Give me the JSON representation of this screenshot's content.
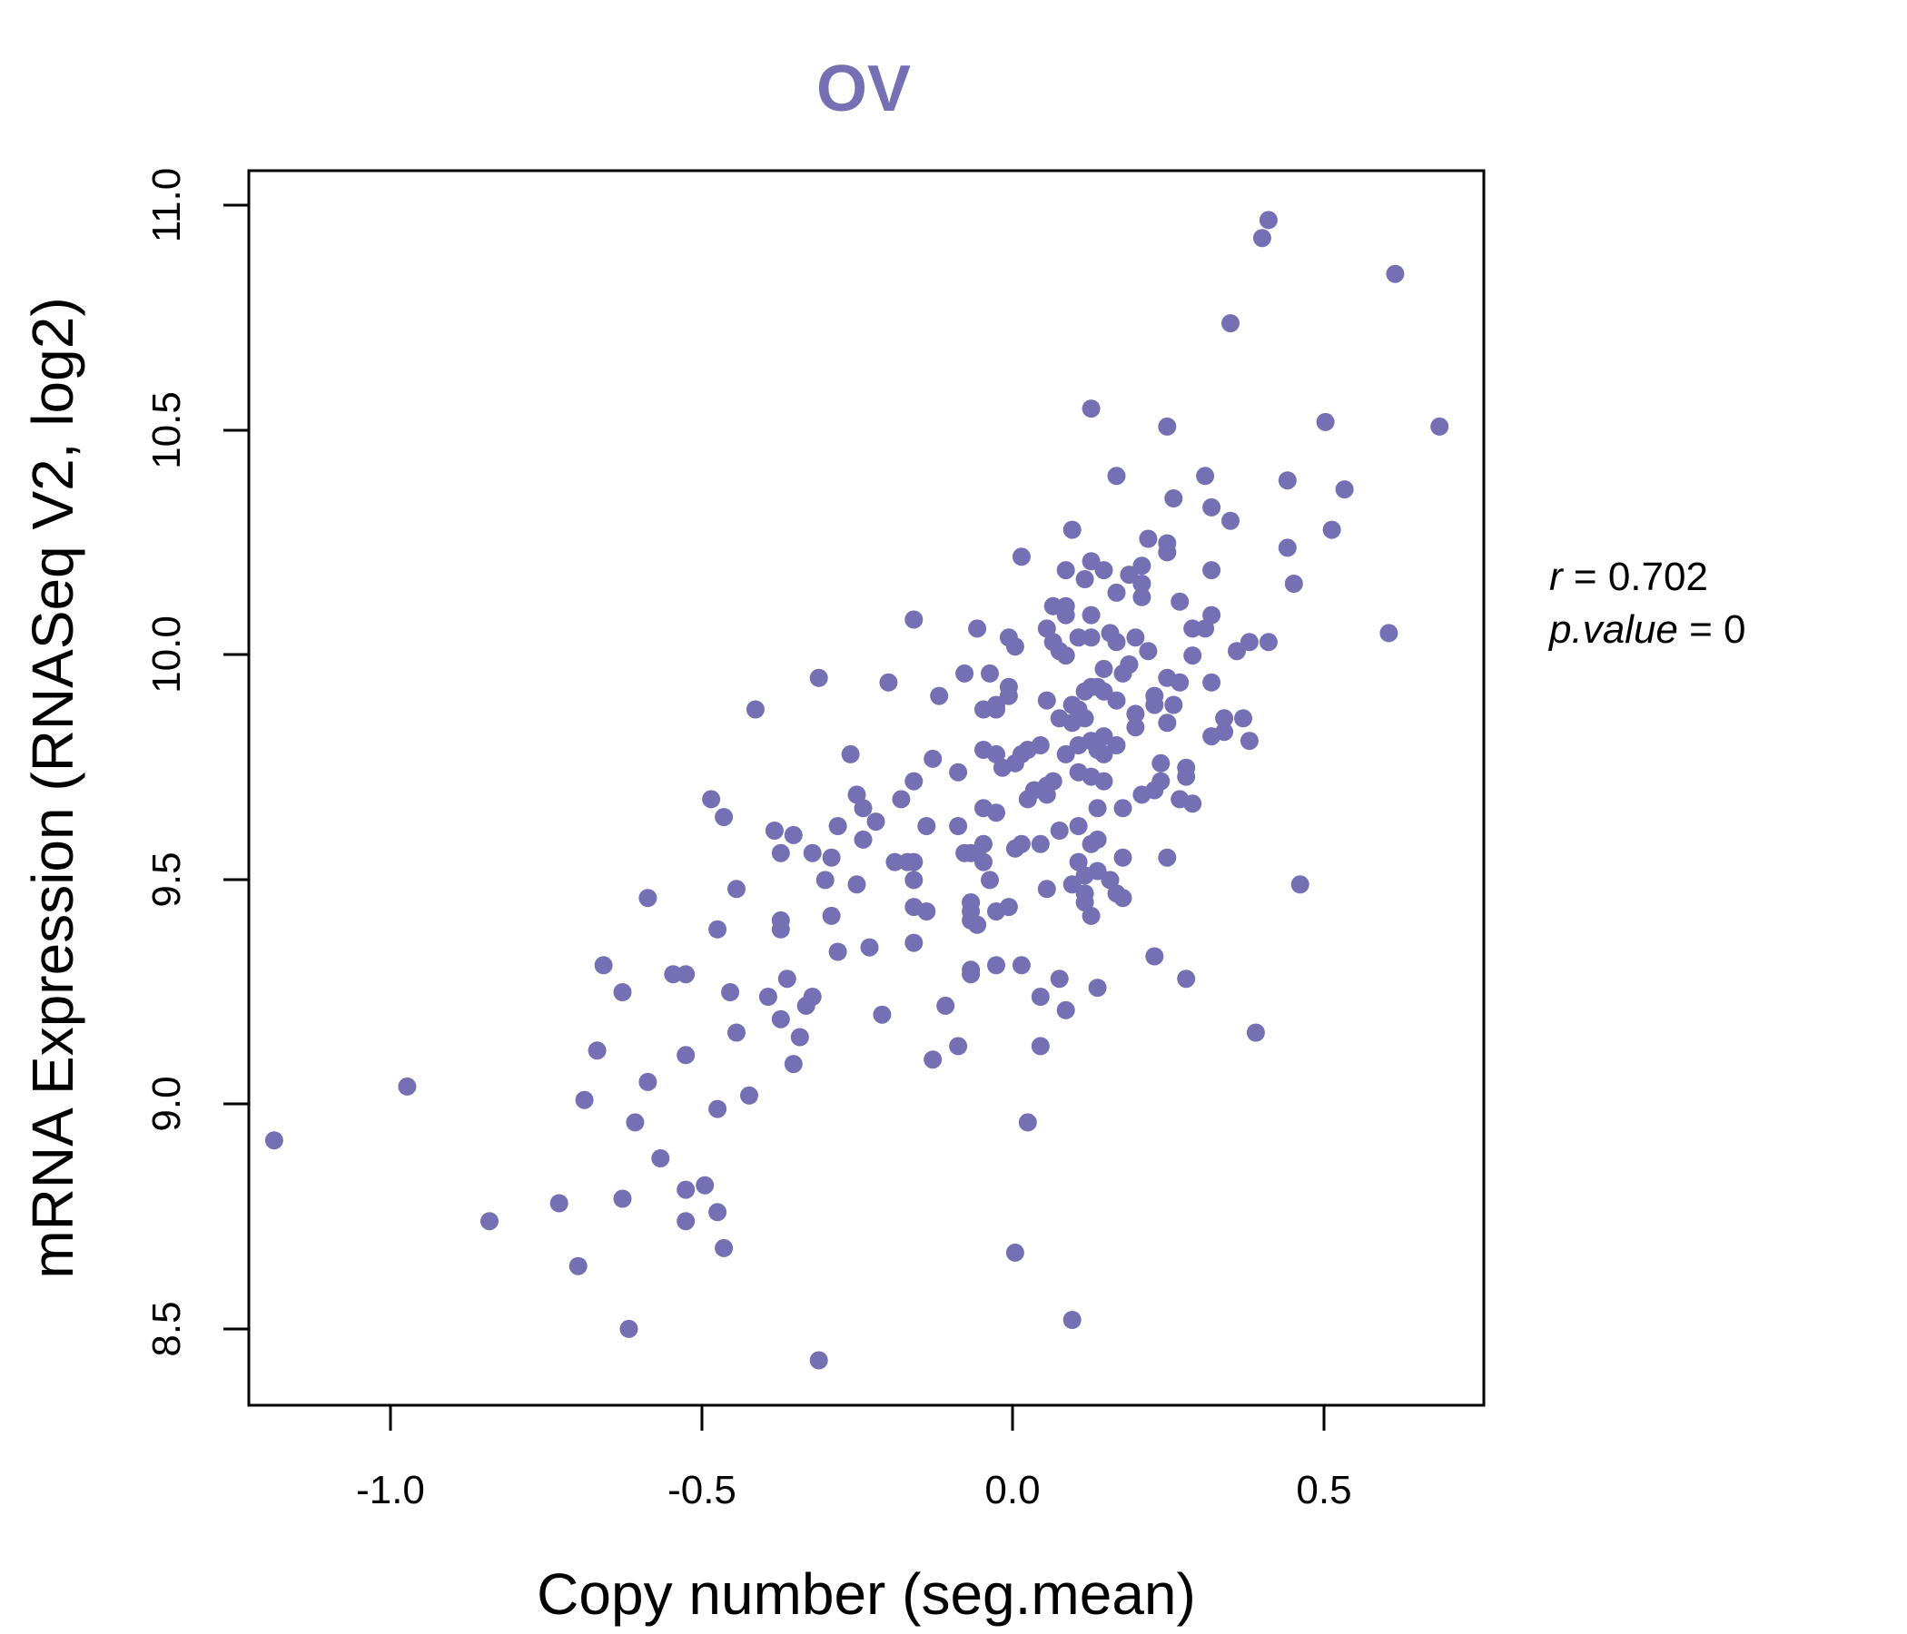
{
  "chart_data": {
    "type": "scatter",
    "title": "OV",
    "title_color": "#7570b3",
    "point_color": "#7570b3",
    "xlabel": "Copy number (seg.mean)",
    "ylabel": "mRNA Expression (RNASeq V2, log2)",
    "xlim": [
      -1.2,
      0.75
    ],
    "ylim": [
      8.33,
      11.08
    ],
    "xticks": [
      "-1.0",
      "-0.5",
      "0.0",
      "0.5"
    ],
    "yticks": [
      "8.5",
      "9.0",
      "9.5",
      "10.0",
      "10.5",
      "11.0"
    ],
    "stats": {
      "r_label": "r",
      "r_value": "0.702",
      "p_label": "p.value",
      "p_value": "0"
    },
    "points": [
      [
        -1.16,
        8.92
      ],
      [
        -0.95,
        9.04
      ],
      [
        -0.82,
        8.74
      ],
      [
        -0.71,
        8.78
      ],
      [
        -0.68,
        8.64
      ],
      [
        -0.67,
        9.01
      ],
      [
        -0.65,
        9.12
      ],
      [
        -0.64,
        9.31
      ],
      [
        -0.61,
        9.25
      ],
      [
        -0.61,
        8.79
      ],
      [
        -0.6,
        8.5
      ],
      [
        -0.59,
        8.96
      ],
      [
        -0.57,
        9.46
      ],
      [
        -0.57,
        9.05
      ],
      [
        -0.55,
        8.88
      ],
      [
        -0.53,
        9.29
      ],
      [
        -0.51,
        9.29
      ],
      [
        -0.51,
        9.11
      ],
      [
        -0.51,
        8.81
      ],
      [
        -0.51,
        8.74
      ],
      [
        -0.48,
        8.82
      ],
      [
        -0.47,
        9.68
      ],
      [
        -0.46,
        9.39
      ],
      [
        -0.46,
        8.76
      ],
      [
        -0.46,
        8.99
      ],
      [
        -0.45,
        9.64
      ],
      [
        -0.45,
        8.68
      ],
      [
        -0.44,
        9.25
      ],
      [
        -0.43,
        9.48
      ],
      [
        -0.43,
        9.16
      ],
      [
        -0.41,
        9.02
      ],
      [
        -0.4,
        9.88
      ],
      [
        -0.38,
        9.24
      ],
      [
        -0.37,
        9.61
      ],
      [
        -0.36,
        9.56
      ],
      [
        -0.36,
        9.41
      ],
      [
        -0.36,
        9.39
      ],
      [
        -0.36,
        9.19
      ],
      [
        -0.35,
        9.28
      ],
      [
        -0.34,
        9.6
      ],
      [
        -0.34,
        9.09
      ],
      [
        -0.33,
        9.15
      ],
      [
        -0.32,
        9.22
      ],
      [
        -0.31,
        9.56
      ],
      [
        -0.31,
        9.24
      ],
      [
        -0.3,
        9.95
      ],
      [
        -0.3,
        8.43
      ],
      [
        -0.29,
        9.5
      ],
      [
        -0.28,
        9.55
      ],
      [
        -0.28,
        9.42
      ],
      [
        -0.27,
        9.62
      ],
      [
        -0.27,
        9.34
      ],
      [
        -0.25,
        9.78
      ],
      [
        -0.24,
        9.69
      ],
      [
        -0.24,
        9.49
      ],
      [
        -0.23,
        9.66
      ],
      [
        -0.23,
        9.59
      ],
      [
        -0.22,
        9.35
      ],
      [
        -0.21,
        9.63
      ],
      [
        -0.2,
        9.2
      ],
      [
        -0.19,
        9.94
      ],
      [
        -0.18,
        9.54
      ],
      [
        -0.17,
        9.68
      ],
      [
        -0.16,
        9.54
      ],
      [
        -0.15,
        10.08
      ],
      [
        -0.15,
        9.72
      ],
      [
        -0.15,
        9.54
      ],
      [
        -0.15,
        9.5
      ],
      [
        -0.15,
        9.44
      ],
      [
        -0.15,
        9.36
      ],
      [
        -0.13,
        9.43
      ],
      [
        -0.13,
        9.62
      ],
      [
        -0.12,
        9.1
      ],
      [
        -0.12,
        9.77
      ],
      [
        -0.11,
        9.91
      ],
      [
        -0.1,
        9.22
      ],
      [
        -0.08,
        9.74
      ],
      [
        -0.08,
        9.62
      ],
      [
        -0.08,
        9.13
      ],
      [
        -0.07,
        9.96
      ],
      [
        -0.07,
        9.56
      ],
      [
        -0.06,
        9.45
      ],
      [
        -0.06,
        9.56
      ],
      [
        -0.06,
        9.45
      ],
      [
        -0.06,
        9.43
      ],
      [
        -0.06,
        9.3
      ],
      [
        -0.06,
        9.29
      ],
      [
        -0.06,
        9.41
      ],
      [
        -0.05,
        10.06
      ],
      [
        -0.05,
        9.56
      ],
      [
        -0.05,
        9.4
      ],
      [
        -0.04,
        9.88
      ],
      [
        -0.04,
        9.66
      ],
      [
        -0.04,
        9.79
      ],
      [
        -0.04,
        9.54
      ],
      [
        -0.04,
        9.58
      ],
      [
        -0.03,
        9.96
      ],
      [
        -0.03,
        9.5
      ],
      [
        -0.02,
        9.89
      ],
      [
        -0.02,
        9.88
      ],
      [
        -0.02,
        9.31
      ],
      [
        -0.02,
        9.78
      ],
      [
        -0.02,
        9.65
      ],
      [
        -0.02,
        9.43
      ],
      [
        -0.01,
        9.75
      ],
      [
        0.0,
        10.04
      ],
      [
        0.0,
        9.93
      ],
      [
        0.0,
        9.91
      ],
      [
        0.0,
        9.44
      ],
      [
        0.01,
        10.02
      ],
      [
        0.01,
        9.76
      ],
      [
        0.01,
        9.57
      ],
      [
        0.01,
        8.67
      ],
      [
        0.02,
        10.22
      ],
      [
        0.02,
        9.78
      ],
      [
        0.02,
        9.58
      ],
      [
        0.02,
        9.31
      ],
      [
        0.03,
        8.96
      ],
      [
        0.03,
        9.79
      ],
      [
        0.03,
        9.68
      ],
      [
        0.04,
        9.7
      ],
      [
        0.05,
        9.8
      ],
      [
        0.05,
        9.24
      ],
      [
        0.05,
        9.13
      ],
      [
        0.05,
        9.58
      ],
      [
        0.06,
        10.06
      ],
      [
        0.06,
        9.9
      ],
      [
        0.06,
        9.71
      ],
      [
        0.06,
        9.69
      ],
      [
        0.06,
        9.48
      ],
      [
        0.07,
        10.11
      ],
      [
        0.07,
        10.03
      ],
      [
        0.07,
        9.72
      ],
      [
        0.08,
        10.01
      ],
      [
        0.08,
        9.86
      ],
      [
        0.08,
        9.61
      ],
      [
        0.08,
        9.28
      ],
      [
        0.09,
        10.19
      ],
      [
        0.09,
        10.11
      ],
      [
        0.09,
        10.09
      ],
      [
        0.09,
        10.0
      ],
      [
        0.09,
        9.78
      ],
      [
        0.09,
        9.21
      ],
      [
        0.1,
        10.28
      ],
      [
        0.1,
        9.89
      ],
      [
        0.1,
        9.85
      ],
      [
        0.1,
        9.49
      ],
      [
        0.1,
        8.52
      ],
      [
        0.11,
        10.04
      ],
      [
        0.11,
        9.88
      ],
      [
        0.11,
        9.8
      ],
      [
        0.11,
        9.54
      ],
      [
        0.11,
        9.62
      ],
      [
        0.11,
        9.74
      ],
      [
        0.12,
        10.17
      ],
      [
        0.12,
        9.92
      ],
      [
        0.12,
        9.86
      ],
      [
        0.12,
        9.51
      ],
      [
        0.12,
        9.47
      ],
      [
        0.12,
        9.45
      ],
      [
        0.13,
        10.55
      ],
      [
        0.13,
        10.21
      ],
      [
        0.13,
        10.09
      ],
      [
        0.13,
        10.04
      ],
      [
        0.13,
        9.93
      ],
      [
        0.13,
        9.81
      ],
      [
        0.13,
        9.73
      ],
      [
        0.13,
        9.58
      ],
      [
        0.13,
        9.42
      ],
      [
        0.14,
        9.93
      ],
      [
        0.14,
        9.79
      ],
      [
        0.14,
        9.66
      ],
      [
        0.14,
        9.52
      ],
      [
        0.14,
        9.59
      ],
      [
        0.14,
        9.26
      ],
      [
        0.15,
        10.19
      ],
      [
        0.15,
        9.97
      ],
      [
        0.15,
        9.92
      ],
      [
        0.15,
        9.82
      ],
      [
        0.15,
        9.78
      ],
      [
        0.15,
        9.72
      ],
      [
        0.16,
        10.05
      ],
      [
        0.16,
        9.5
      ],
      [
        0.17,
        10.4
      ],
      [
        0.17,
        10.14
      ],
      [
        0.17,
        10.03
      ],
      [
        0.17,
        9.9
      ],
      [
        0.17,
        9.8
      ],
      [
        0.17,
        9.47
      ],
      [
        0.18,
        9.46
      ],
      [
        0.18,
        9.55
      ],
      [
        0.18,
        9.66
      ],
      [
        0.18,
        9.96
      ],
      [
        0.19,
        10.18
      ],
      [
        0.19,
        9.98
      ],
      [
        0.19,
        9.98
      ],
      [
        0.2,
        9.84
      ],
      [
        0.2,
        9.87
      ],
      [
        0.2,
        10.04
      ],
      [
        0.21,
        10.2
      ],
      [
        0.21,
        10.16
      ],
      [
        0.21,
        10.13
      ],
      [
        0.21,
        9.69
      ],
      [
        0.22,
        10.26
      ],
      [
        0.22,
        10.01
      ],
      [
        0.23,
        9.91
      ],
      [
        0.23,
        9.89
      ],
      [
        0.23,
        9.7
      ],
      [
        0.23,
        9.33
      ],
      [
        0.24,
        9.76
      ],
      [
        0.24,
        9.72
      ],
      [
        0.25,
        10.51
      ],
      [
        0.25,
        10.25
      ],
      [
        0.25,
        10.23
      ],
      [
        0.25,
        9.95
      ],
      [
        0.25,
        9.85
      ],
      [
        0.25,
        9.55
      ],
      [
        0.26,
        10.35
      ],
      [
        0.26,
        9.89
      ],
      [
        0.27,
        10.12
      ],
      [
        0.27,
        9.94
      ],
      [
        0.27,
        9.68
      ],
      [
        0.28,
        9.73
      ],
      [
        0.28,
        9.75
      ],
      [
        0.28,
        9.28
      ],
      [
        0.29,
        10.06
      ],
      [
        0.29,
        10.0
      ],
      [
        0.29,
        9.67
      ],
      [
        0.31,
        10.4
      ],
      [
        0.31,
        10.06
      ],
      [
        0.32,
        10.33
      ],
      [
        0.32,
        10.19
      ],
      [
        0.32,
        10.09
      ],
      [
        0.32,
        9.94
      ],
      [
        0.32,
        9.82
      ],
      [
        0.34,
        9.86
      ],
      [
        0.34,
        9.83
      ],
      [
        0.35,
        10.3
      ],
      [
        0.35,
        10.74
      ],
      [
        0.36,
        10.01
      ],
      [
        0.37,
        9.86
      ],
      [
        0.38,
        10.03
      ],
      [
        0.38,
        9.81
      ],
      [
        0.39,
        9.16
      ],
      [
        0.4,
        10.93
      ],
      [
        0.41,
        10.97
      ],
      [
        0.41,
        10.03
      ],
      [
        0.44,
        10.39
      ],
      [
        0.44,
        10.24
      ],
      [
        0.45,
        10.16
      ],
      [
        0.46,
        9.49
      ],
      [
        0.5,
        10.52
      ],
      [
        0.51,
        10.28
      ],
      [
        0.53,
        10.37
      ],
      [
        0.6,
        10.05
      ],
      [
        0.61,
        10.85
      ],
      [
        0.68,
        10.51
      ]
    ]
  }
}
